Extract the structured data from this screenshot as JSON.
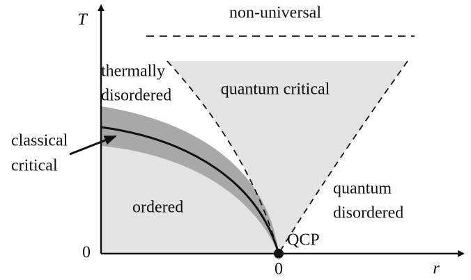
{
  "axes": {
    "y_label": "T",
    "x_label": "r",
    "y_origin": "0",
    "x_origin": "0"
  },
  "regions": {
    "non_universal": "non-universal",
    "thermally_disordered": [
      "thermally",
      "disordered"
    ],
    "quantum_critical": "quantum critical",
    "classical_critical": [
      "classical",
      "critical"
    ],
    "ordered": "ordered",
    "quantum_disordered": [
      "quantum",
      "disordered"
    ],
    "qcp": "QCP"
  }
}
